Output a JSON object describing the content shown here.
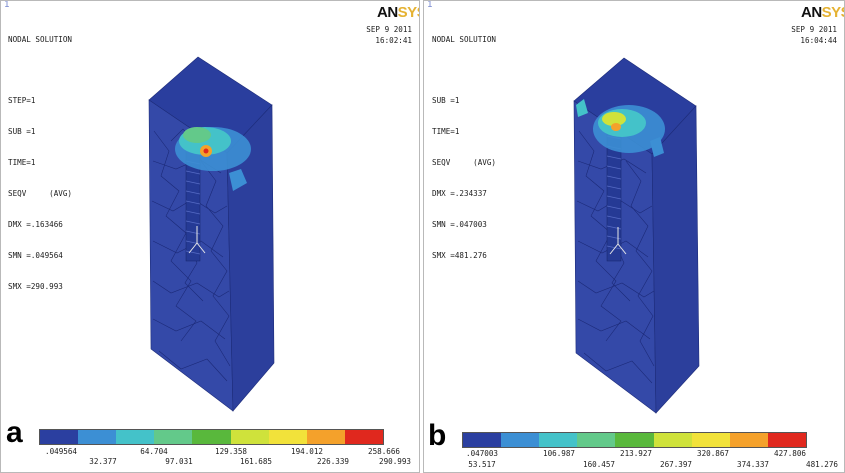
{
  "colormap": [
    "#2b3fa0",
    "#3c8fd4",
    "#44c2c9",
    "#63c98a",
    "#59b83c",
    "#cfe23b",
    "#f2e23a",
    "#f4a12b",
    "#e0281e"
  ],
  "panels": [
    {
      "id": "a",
      "index": "1",
      "letter": "a",
      "info": [
        "NODAL SOLUTION",
        "",
        "STEP=1",
        "SUB =1",
        "TIME=1",
        "SEQV     (AVG)",
        "DMX =.163466",
        "SMN =.049564",
        "SMX =290.993"
      ],
      "logo": {
        "an": "AN",
        "sys": "SYS"
      },
      "date": "SEP  9 2011",
      "time": "16:02:41",
      "legend_top": [
        ".049564",
        "64.704",
        "129.358",
        "194.012",
        "258.666"
      ],
      "legend_bottom": [
        "32.377",
        "97.031",
        "161.685",
        "226.339",
        "290.993"
      ]
    },
    {
      "id": "b",
      "index": "1",
      "letter": "b",
      "info": [
        "NODAL SOLUTION",
        "",
        "SUB =1",
        "TIME=1",
        "SEQV     (AVG)",
        "DMX =.234337",
        "SMN =.047003",
        "SMX =481.276"
      ],
      "logo": {
        "an": "AN",
        "sys": "SYS"
      },
      "date": "SEP  9 2011",
      "time": "16:04:44",
      "legend_top": [
        ".047003",
        "106.987",
        "213.927",
        "320.867",
        "427.806"
      ],
      "legend_bottom": [
        "53.517",
        "160.457",
        "267.397",
        "374.337",
        "481.276"
      ]
    }
  ]
}
